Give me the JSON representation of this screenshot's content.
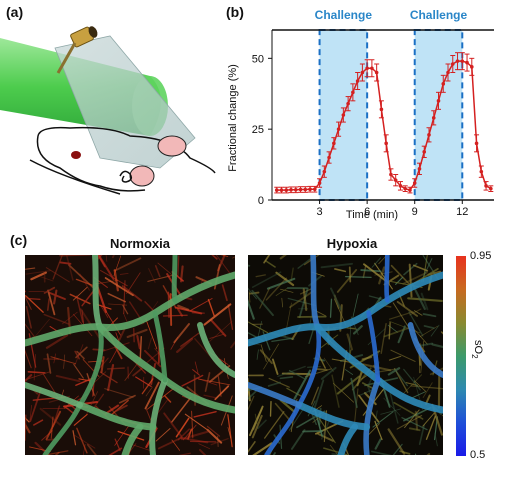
{
  "panels": {
    "a": {
      "label": "(a)"
    },
    "b": {
      "label": "(b)"
    },
    "c": {
      "label": "(c)",
      "left_title": "Normoxia",
      "right_title": "Hypoxia"
    }
  },
  "colorbar": {
    "max_label": "0.95",
    "min_label": "0.5",
    "quantity_label": "sO",
    "quantity_sub": "2",
    "colors": [
      "#e8321e",
      "#c86a20",
      "#8a8a30",
      "#3c9a6a",
      "#2e8ab0",
      "#1f4fd8",
      "#1a1ae8"
    ]
  },
  "colors": {
    "challenge_fill": "#bfe3f6",
    "challenge_border": "#1a6fc4",
    "challenge_text": "#2a86c8",
    "series": "#d42020"
  },
  "chart_data": {
    "type": "line",
    "title": "",
    "xlabel": "Time (min)",
    "ylabel": "Fractional change (%)",
    "xlim": [
      0,
      14
    ],
    "ylim": [
      0,
      60
    ],
    "xticks": [
      3,
      6,
      9,
      12
    ],
    "yticks": [
      0,
      25,
      50
    ],
    "annotations": [
      "Challenge",
      "Challenge"
    ],
    "shaded_regions": [
      [
        3,
        6
      ],
      [
        9,
        12
      ]
    ],
    "series": [
      {
        "x": [
          0.3,
          0.6,
          0.9,
          1.2,
          1.5,
          1.8,
          2.1,
          2.4,
          2.7,
          3.0,
          3.3,
          3.6,
          3.9,
          4.2,
          4.5,
          4.8,
          5.1,
          5.4,
          5.7,
          6.0,
          6.3,
          6.6,
          6.9,
          7.2,
          7.5,
          7.8,
          8.1,
          8.4,
          8.7,
          9.0,
          9.3,
          9.6,
          9.9,
          10.2,
          10.5,
          10.8,
          11.1,
          11.4,
          11.7,
          12.0,
          12.3,
          12.6,
          12.9,
          13.2,
          13.5,
          13.8
        ],
        "values": [
          3.5,
          3.5,
          3.5,
          3.6,
          3.6,
          3.7,
          3.7,
          3.8,
          3.8,
          6,
          10,
          15,
          20,
          25,
          30,
          34,
          38,
          42,
          45,
          46.5,
          46.5,
          45,
          32,
          20,
          9,
          7,
          5,
          4,
          3.5,
          6,
          11,
          17,
          23,
          29,
          35,
          41,
          45,
          48,
          49,
          49,
          48.5,
          47,
          20,
          10,
          5,
          4
        ],
        "error": [
          1,
          1,
          1,
          1,
          1,
          1,
          1,
          1,
          1,
          1.5,
          2,
          2,
          2,
          2.5,
          2.5,
          2.5,
          3,
          3,
          3,
          3,
          3,
          3,
          3,
          3,
          2,
          2,
          1.5,
          1,
          1,
          1.5,
          2,
          2,
          2.5,
          2.5,
          3,
          3,
          3,
          3,
          3,
          3,
          3,
          3,
          3,
          2,
          1.5,
          1
        ]
      }
    ]
  }
}
